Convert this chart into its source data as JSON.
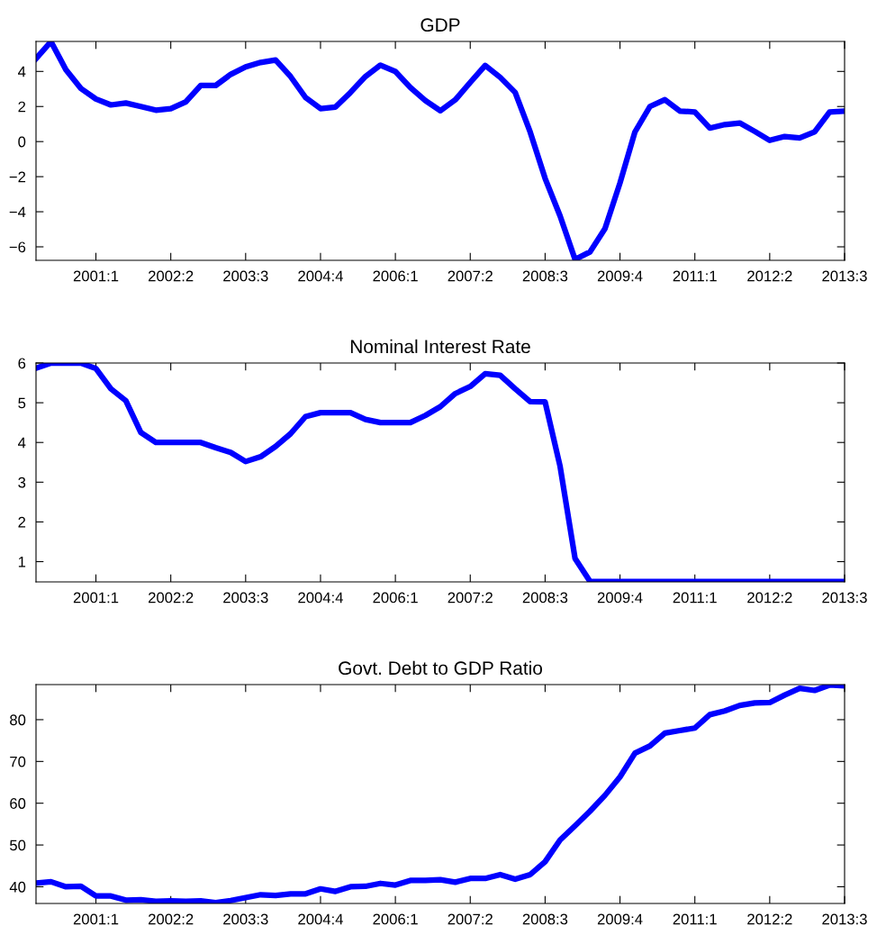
{
  "chart_data": [
    {
      "type": "line",
      "title": "GDP",
      "categories": [
        null,
        null,
        null,
        null,
        "2001:1",
        null,
        null,
        null,
        null,
        "2002:2",
        null,
        null,
        null,
        null,
        "2003:3",
        null,
        null,
        null,
        null,
        "2004:4",
        null,
        null,
        null,
        null,
        "2006:1",
        null,
        null,
        null,
        null,
        "2007:2",
        null,
        null,
        null,
        null,
        "2008:3",
        null,
        null,
        null,
        null,
        "2009:4",
        null,
        null,
        null,
        null,
        "2011:1",
        null,
        null,
        null,
        null,
        "2012:2",
        null,
        null,
        null,
        null,
        "2013:3"
      ],
      "series": [
        {
          "color": "#0000ff",
          "values": [
            4.73,
            5.7,
            4.09,
            3.03,
            2.43,
            2.09,
            2.2,
            2.0,
            1.79,
            1.88,
            2.26,
            3.2,
            3.2,
            3.83,
            4.26,
            4.51,
            4.65,
            3.71,
            2.51,
            1.88,
            1.97,
            2.8,
            3.71,
            4.36,
            4.0,
            3.08,
            2.34,
            1.76,
            2.38,
            3.37,
            4.34,
            3.66,
            2.8,
            0.55,
            -2.1,
            -4.24,
            -6.72,
            -6.29,
            -4.96,
            -2.36,
            0.55,
            2.0,
            2.39,
            1.74,
            1.69,
            0.77,
            0.97,
            1.06,
            0.58,
            0.07,
            0.29,
            0.21,
            0.55,
            1.69,
            1.74
          ]
        }
      ],
      "ylim": [
        -6.77,
        5.71
      ],
      "yticks": [
        {
          "value": -6,
          "label": "−6"
        },
        {
          "value": -4,
          "label": "−4"
        },
        {
          "value": -2,
          "label": "−2"
        },
        0,
        2,
        4
      ],
      "grid": false,
      "legend": false
    },
    {
      "type": "line",
      "title": "Nominal Interest Rate",
      "categories": [
        null,
        null,
        null,
        null,
        "2001:1",
        null,
        null,
        null,
        null,
        "2002:2",
        null,
        null,
        null,
        null,
        "2003:3",
        null,
        null,
        null,
        null,
        "2004:4",
        null,
        null,
        null,
        null,
        "2006:1",
        null,
        null,
        null,
        null,
        "2007:2",
        null,
        null,
        null,
        null,
        "2008:3",
        null,
        null,
        null,
        null,
        "2009:4",
        null,
        null,
        null,
        null,
        "2011:1",
        null,
        null,
        null,
        null,
        "2012:2",
        null,
        null,
        null,
        null,
        "2013:3"
      ],
      "series": [
        {
          "color": "#0000ff",
          "values": [
            5.87,
            6.0,
            6.0,
            6.0,
            5.86,
            5.35,
            5.05,
            4.25,
            4.0,
            4.0,
            4.0,
            4.0,
            3.87,
            3.75,
            3.52,
            3.64,
            3.9,
            4.22,
            4.65,
            4.75,
            4.75,
            4.75,
            4.58,
            4.5,
            4.5,
            4.5,
            4.68,
            4.9,
            5.23,
            5.41,
            5.73,
            5.69,
            5.35,
            5.03,
            5.02,
            3.4,
            1.08,
            0.5,
            0.5,
            0.5,
            0.5,
            0.5,
            0.5,
            0.5,
            0.5,
            0.5,
            0.5,
            0.5,
            0.5,
            0.5,
            0.5,
            0.5,
            0.5,
            0.5,
            0.5
          ]
        }
      ],
      "ylim": [
        0.49,
        6
      ],
      "yticks": [
        1,
        2,
        3,
        4,
        5,
        6
      ],
      "grid": false,
      "legend": false
    },
    {
      "type": "line",
      "title": "Govt. Debt to GDP Ratio",
      "categories": [
        null,
        null,
        null,
        null,
        "2001:1",
        null,
        null,
        null,
        null,
        "2002:2",
        null,
        null,
        null,
        null,
        "2003:3",
        null,
        null,
        null,
        null,
        "2004:4",
        null,
        null,
        null,
        null,
        "2006:1",
        null,
        null,
        null,
        null,
        "2007:2",
        null,
        null,
        null,
        null,
        "2008:3",
        null,
        null,
        null,
        null,
        "2009:4",
        null,
        null,
        null,
        null,
        "2011:1",
        null,
        null,
        null,
        null,
        "2012:2",
        null,
        null,
        null,
        null,
        "2013:3"
      ],
      "series": [
        {
          "color": "#0000ff",
          "values": [
            40.9,
            41.2,
            40.0,
            40.1,
            37.8,
            37.8,
            36.8,
            36.9,
            36.5,
            36.6,
            36.5,
            36.6,
            36.2,
            36.7,
            37.4,
            38.1,
            37.9,
            38.3,
            38.3,
            39.5,
            38.9,
            40.0,
            40.1,
            40.8,
            40.4,
            41.5,
            41.5,
            41.7,
            41.1,
            42.0,
            42.0,
            42.9,
            41.8,
            42.9,
            46.0,
            51.2,
            54.6,
            58.1,
            61.9,
            66.3,
            72.0,
            73.7,
            76.8,
            77.4,
            78.0,
            81.2,
            82.1,
            83.4,
            84.0,
            84.1,
            85.9,
            87.5,
            87.0,
            88.3,
            88.1
          ]
        }
      ],
      "ylim": [
        36,
        88.4
      ],
      "yticks": [
        40,
        50,
        60,
        70,
        80
      ],
      "grid": false,
      "legend": false
    }
  ]
}
